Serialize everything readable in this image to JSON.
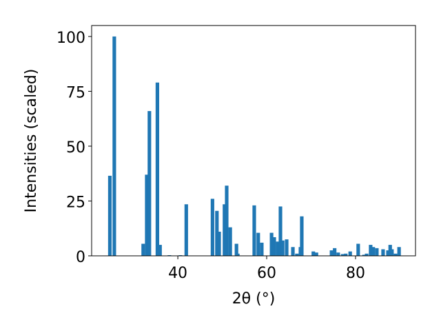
{
  "chart_data": {
    "type": "bar",
    "xlabel": "2θ (°)",
    "ylabel": "Intensities (scaled)",
    "x": [
      24.7,
      25.7,
      32.2,
      33.0,
      33.6,
      35.4,
      36.0,
      38.1,
      40.6,
      41.9,
      47.8,
      48.8,
      49.3,
      50.5,
      51.0,
      51.8,
      53.2,
      53.5,
      57.2,
      58.1,
      58.9,
      61.1,
      61.7,
      62.5,
      63.1,
      63.6,
      64.5,
      65.9,
      66.8,
      67.6,
      67.9,
      70.5,
      71.2,
      74.6,
      75.3,
      76.1,
      77.1,
      77.8,
      78.8,
      80.6,
      81.9,
      82.5,
      83.4,
      84.0,
      84.8,
      86.2,
      87.3,
      87.8,
      88.2,
      89.0,
      89.8
    ],
    "values": [
      36.5,
      100,
      5.5,
      37,
      66,
      79,
      5,
      0.3,
      0.3,
      23.5,
      26,
      20.5,
      11,
      23.5,
      32,
      13,
      5.5,
      1,
      23,
      10.5,
      6,
      10.5,
      8.5,
      6.5,
      22.5,
      7,
      7.5,
      4,
      1,
      4,
      18,
      2,
      1.5,
      2.5,
      3.5,
      1.5,
      0.8,
      1,
      2,
      5.5,
      0.5,
      1,
      5,
      4,
      3.5,
      3,
      2.5,
      5,
      3,
      1,
      4
    ],
    "bar_width": 0.8,
    "color": "#1f77b4",
    "xlim": [
      20.6,
      93.5
    ],
    "ylim": [
      0,
      105
    ],
    "xticks": [
      40,
      60,
      80
    ],
    "yticks": [
      0,
      25,
      50,
      75,
      100
    ]
  }
}
